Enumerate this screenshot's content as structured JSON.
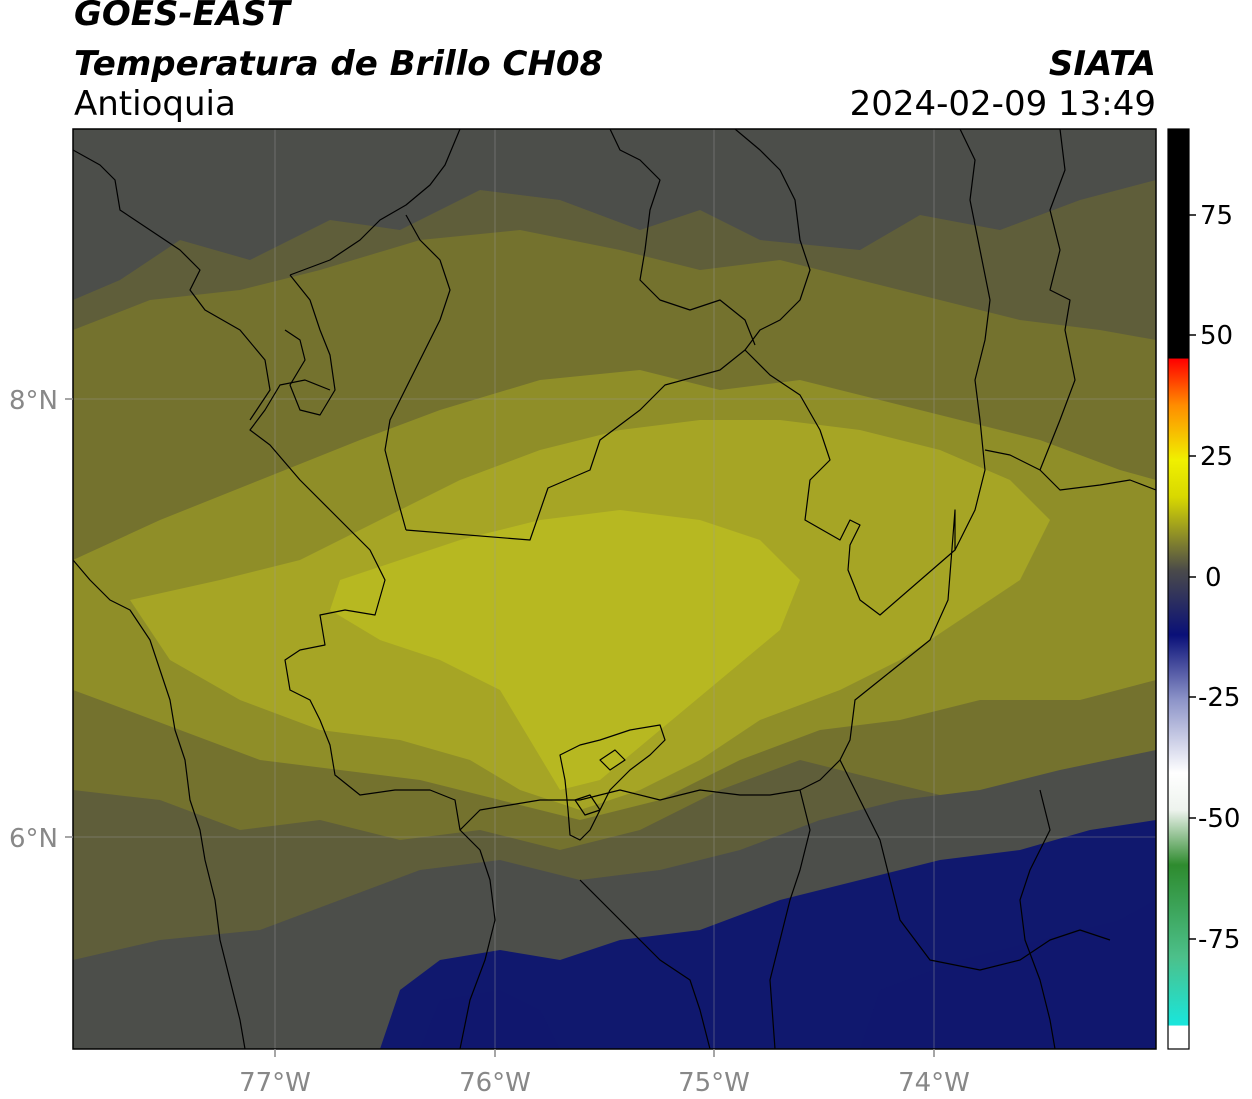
{
  "header": {
    "satellite": "GOES-EAST",
    "product": "Temperatura de Brillo CH08",
    "region": "Antioquia",
    "organization": "SIATA",
    "datetime": "2024-02-09 13:49"
  },
  "map": {
    "lon_labels": [
      "77°W",
      "76°W",
      "75°W",
      "74°W"
    ],
    "lat_labels": [
      "8°N",
      "6°N"
    ]
  },
  "colorbar": {
    "tick_labels": [
      "75",
      "50",
      "25",
      "0",
      "-25",
      "-50",
      "-75"
    ],
    "colors": {
      "cyan": "#19e6dc",
      "green": "#2e8b2e",
      "white": "#ffffff",
      "navy": "#0a1078",
      "grey": "#4a4a4a",
      "yellow": "#f0f000",
      "orange": "#ff8c00",
      "red": "#ff0000",
      "black": "#000000"
    }
  },
  "palette": {
    "navy": "#10186e",
    "grey": "#4c4e4a",
    "olive_dark": "#5f5e3a",
    "olive": "#74722e",
    "olive_light": "#8f8e28",
    "yellow_dim": "#a6a525",
    "yellow": "#b7b821"
  }
}
